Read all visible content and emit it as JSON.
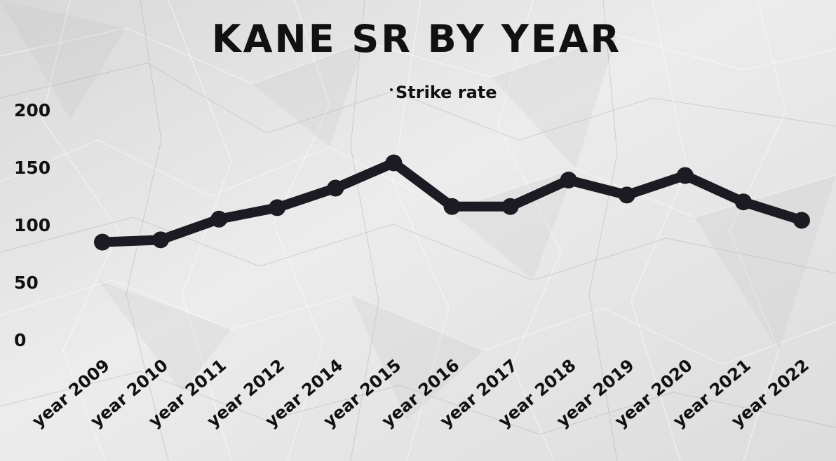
{
  "chart_data": {
    "type": "line",
    "title": "KANE SR BY YEAR",
    "categories": [
      "year 2009",
      "year 2010",
      "year 2011",
      "year 2012",
      "year 2014",
      "year 2015",
      "year 2016",
      "year 2017",
      "year 2018",
      "year 2019",
      "year 2020",
      "year 2021",
      "year 2022"
    ],
    "series": [
      {
        "name": "Strike rate",
        "values": [
          85,
          87,
          105,
          115,
          132,
          154,
          116,
          116,
          139,
          126,
          143,
          120,
          104
        ]
      }
    ],
    "yticks": [
      0,
      50,
      100,
      150,
      200
    ],
    "ylim": [
      0,
      200
    ],
    "xlabel": "",
    "ylabel": "",
    "legend_position": "top",
    "grid": false,
    "line_color": "#1c1a22",
    "background_color": "#e4e4e4"
  }
}
